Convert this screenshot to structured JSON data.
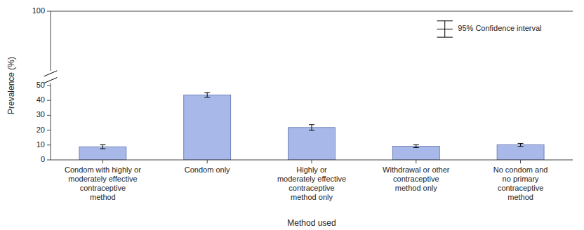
{
  "chart_data": {
    "type": "bar",
    "categories": [
      "Condom with highly or\nmoderately effective\ncontraceptive\nmethod",
      "Condom only",
      "Highly or\nmoderately effective\ncontraceptive\nmethod only",
      "Withdrawal or other\ncontraceptive\nmethod only",
      "No condom and\nno primary\ncontraceptive\nmethod"
    ],
    "values": [
      8.8,
      43.7,
      21.8,
      9.2,
      10.1
    ],
    "errors": [
      1.3,
      1.6,
      1.9,
      0.9,
      1.0
    ],
    "color": "#a8b8e8",
    "x_label": "Method used",
    "y_label": "Prevalence (%)",
    "ylim": [
      0,
      100
    ],
    "yticks": [
      0,
      10,
      20,
      30,
      40,
      50,
      100
    ],
    "annotations": [
      "95% Confidence interval"
    ],
    "grid": false
  }
}
